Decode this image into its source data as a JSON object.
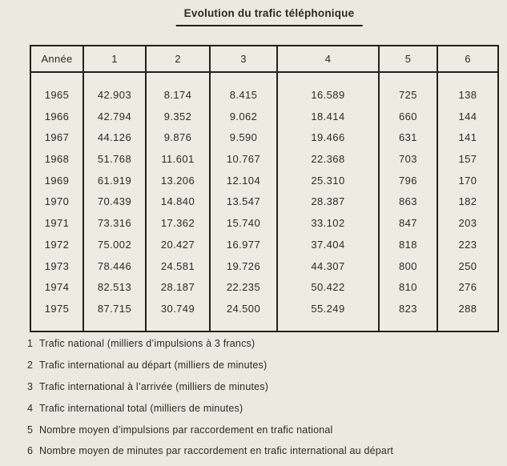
{
  "title": "Evolution du trafic téléphonique",
  "table": {
    "columns": [
      "Année",
      "1",
      "2",
      "3",
      "4",
      "5",
      "6"
    ],
    "rows": [
      [
        "1965",
        "42.903",
        "8.174",
        "8.415",
        "16.589",
        "725",
        "138"
      ],
      [
        "1966",
        "42.794",
        "9.352",
        "9.062",
        "18.414",
        "660",
        "144"
      ],
      [
        "1967",
        "44.126",
        "9.876",
        "9.590",
        "19.466",
        "631",
        "141"
      ],
      [
        "1968",
        "51.768",
        "11.601",
        "10.767",
        "22.368",
        "703",
        "157"
      ],
      [
        "1969",
        "61.919",
        "13.206",
        "12.104",
        "25.310",
        "796",
        "170"
      ],
      [
        "1970",
        "70.439",
        "14.840",
        "13.547",
        "28.387",
        "863",
        "182"
      ],
      [
        "1971",
        "73.316",
        "17.362",
        "15.740",
        "33.102",
        "847",
        "203"
      ],
      [
        "1972",
        "75.002",
        "20.427",
        "16.977",
        "37.404",
        "818",
        "223"
      ],
      [
        "1973",
        "78.446",
        "24.581",
        "19.726",
        "44.307",
        "800",
        "250"
      ],
      [
        "1974",
        "82.513",
        "28.187",
        "22.235",
        "50.422",
        "810",
        "276"
      ],
      [
        "1975",
        "87.715",
        "30.749",
        "24.500",
        "55.249",
        "823",
        "288"
      ]
    ]
  },
  "footnotes": [
    {
      "num": "1",
      "text": "Trafic national (milliers d’impulsions à 3 francs)"
    },
    {
      "num": "2",
      "text": "Trafic international au départ (milliers de minutes)"
    },
    {
      "num": "3",
      "text": "Trafic international à l’arrivée (milliers de minutes)"
    },
    {
      "num": "4",
      "text": "Trafic international total (milliers de minutes)"
    },
    {
      "num": "5",
      "text": "Nombre moyen d’impulsions par raccordement en trafic national"
    },
    {
      "num": "6",
      "text": "Nombre moyen de minutes par raccordement en trafic international au départ"
    }
  ],
  "colors": {
    "paper": "#ece9e1",
    "ink": "#2c2a25",
    "border": "#24211c"
  }
}
